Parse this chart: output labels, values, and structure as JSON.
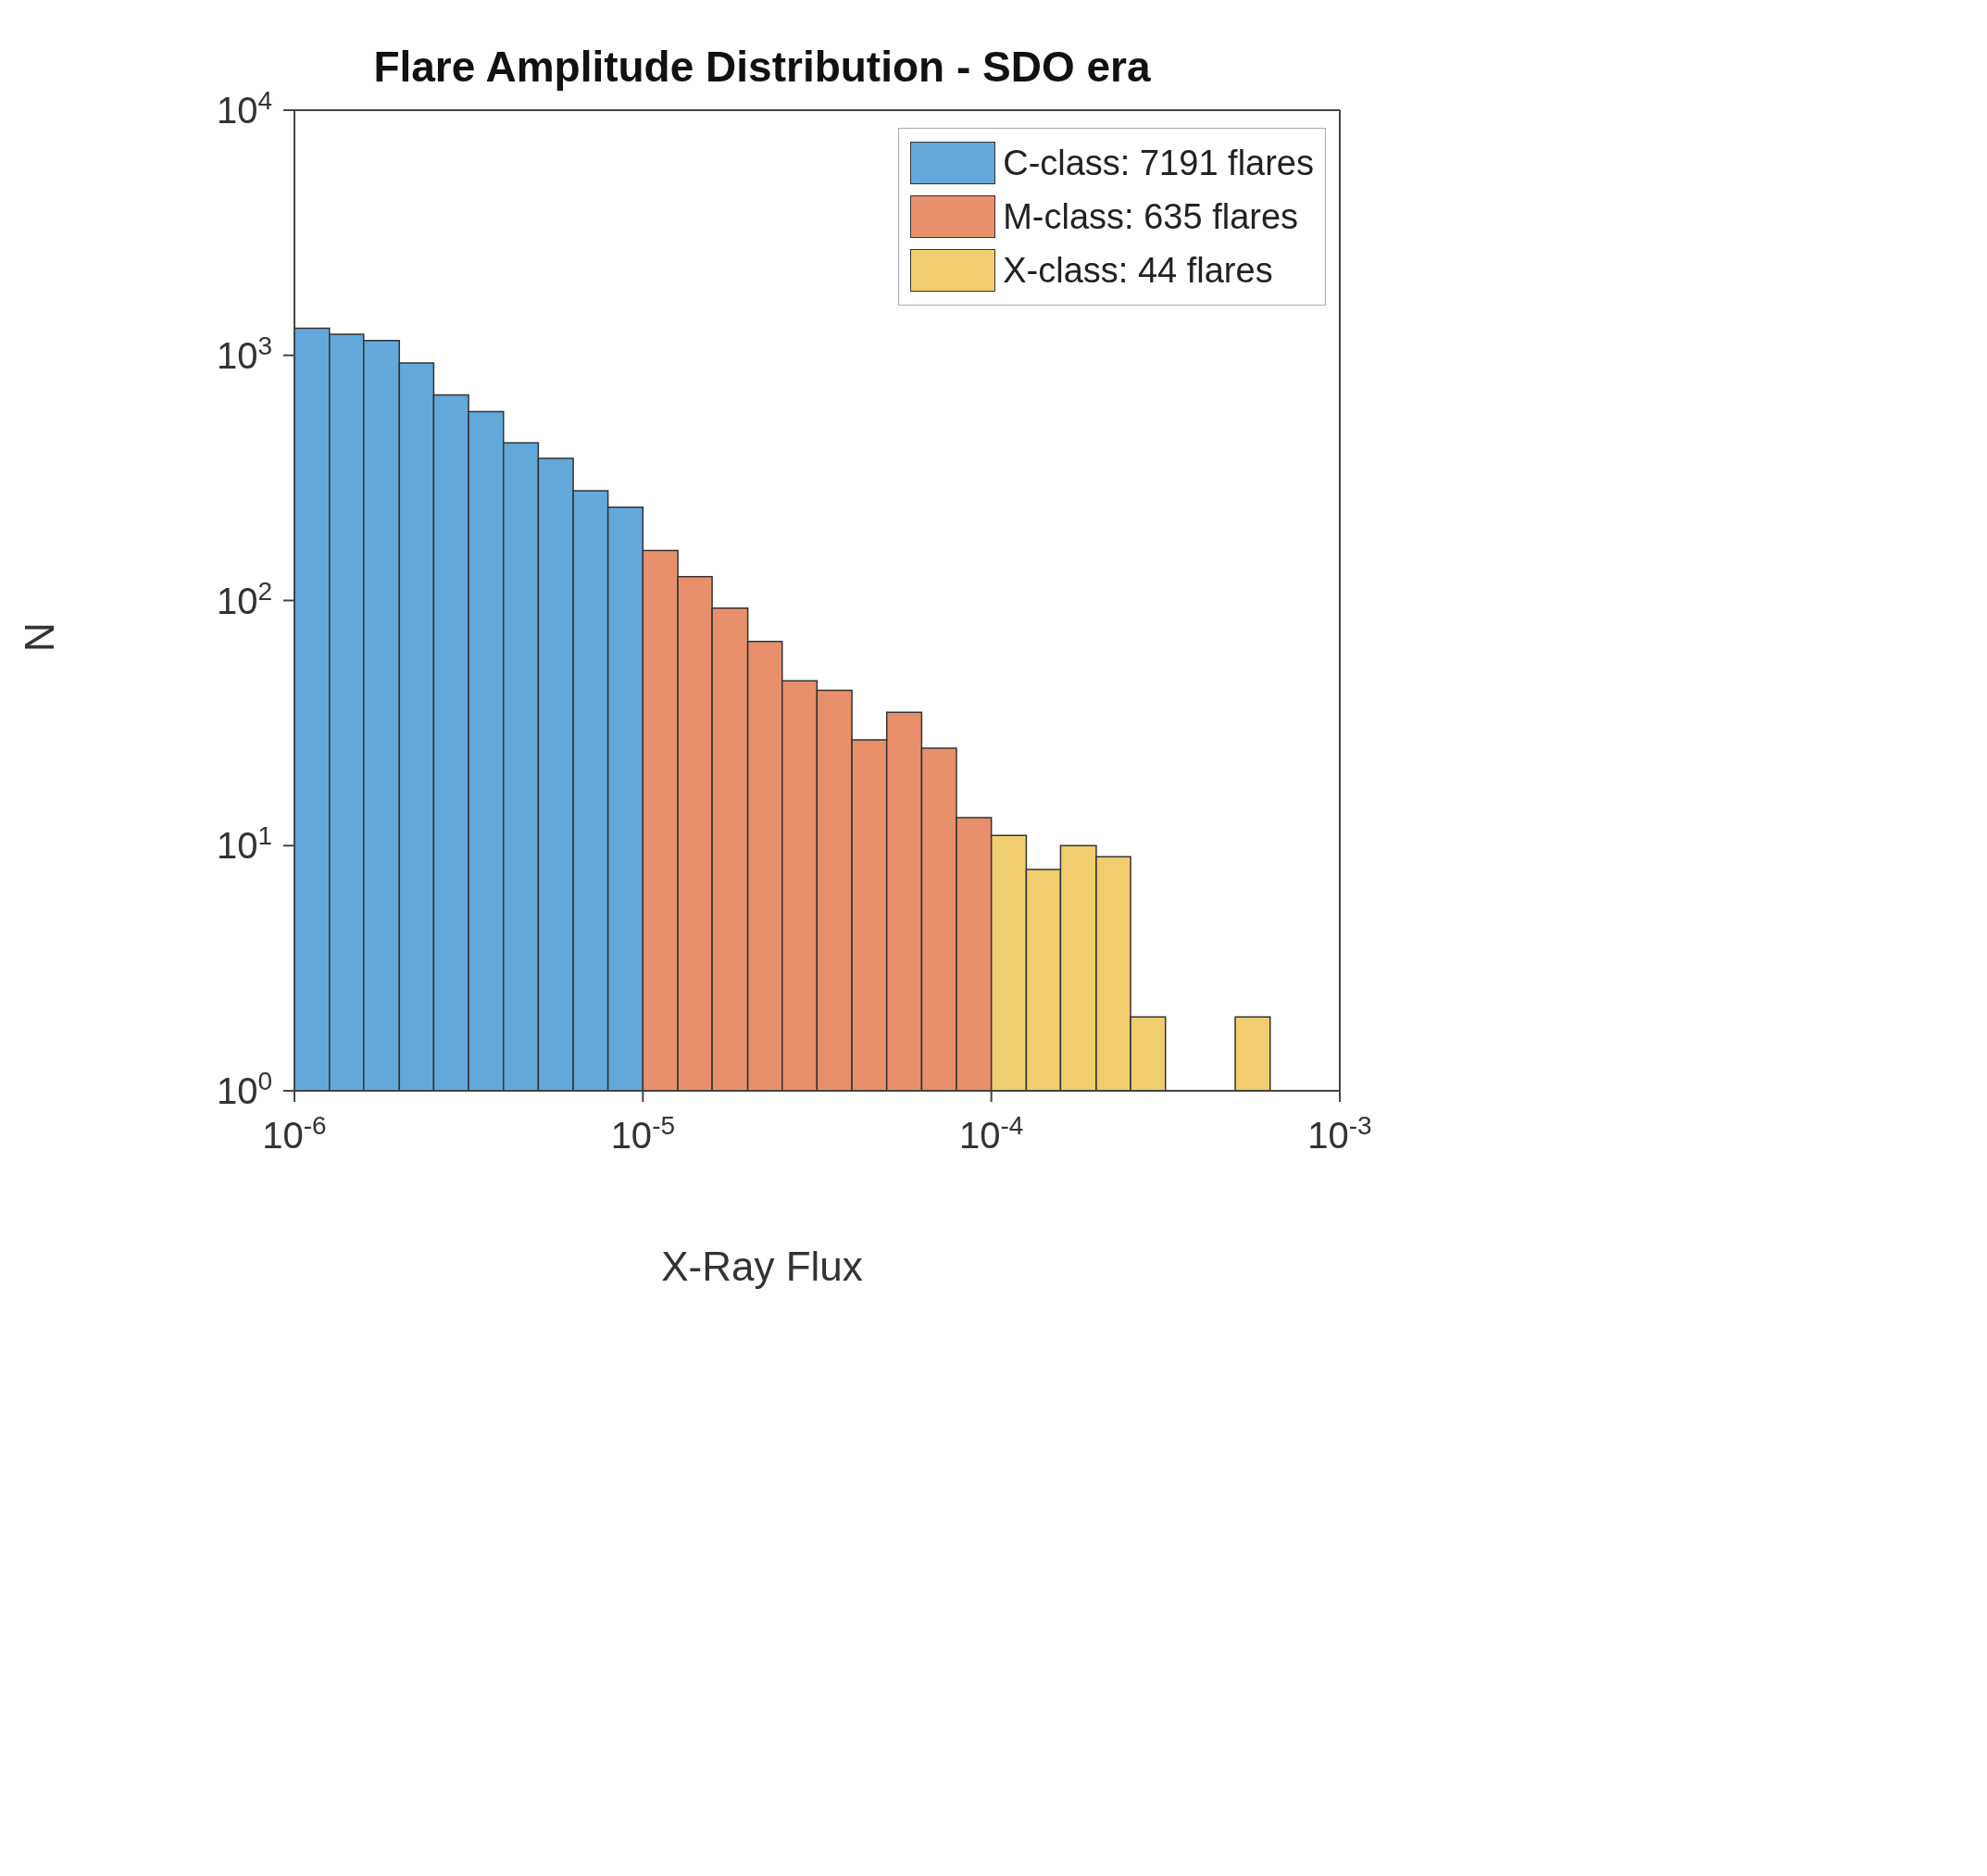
{
  "chart_data": {
    "type": "histogram",
    "title": "Flare Amplitude Distribution - SDO era",
    "xlabel": "X-Ray Flux",
    "ylabel": "N",
    "bins": [
      1e-06,
      1.26e-06,
      1.58e-06,
      2e-06,
      2.51e-06,
      3.16e-06,
      3.98e-06,
      5.01e-06,
      6.31e-06,
      7.94e-06,
      1e-05,
      1.26e-05,
      1.58e-05,
      2e-05,
      2.51e-05,
      3.16e-05,
      3.98e-05,
      5.01e-05,
      6.31e-05,
      7.94e-05,
      0.0001,
      0.000126,
      0.000158,
      0.0002,
      0.000251,
      0.000316,
      0.000501,
      0.000631
    ],
    "series": [
      {
        "name": "C-class: 7191 flares",
        "color": "#62a8db",
        "values": [
          1290,
          1220,
          1150,
          930,
          690,
          590,
          440,
          380,
          280,
          240,
          null,
          null,
          null,
          null,
          null,
          null,
          null,
          null,
          null,
          null,
          null,
          null,
          null,
          null,
          null,
          null,
          null
        ]
      },
      {
        "name": "M-class: 635 flares",
        "color": "#e8906b",
        "values": [
          null,
          null,
          null,
          null,
          null,
          null,
          null,
          null,
          null,
          null,
          160,
          125,
          93,
          68,
          47,
          43,
          27,
          35,
          25,
          13,
          null,
          null,
          null,
          null,
          null,
          null,
          null
        ]
      },
      {
        "name": "X-class: 44 flares",
        "color": "#f0cd6e",
        "values": [
          null,
          null,
          null,
          null,
          null,
          null,
          null,
          null,
          null,
          null,
          null,
          null,
          null,
          null,
          null,
          null,
          null,
          null,
          null,
          null,
          11,
          8,
          10,
          9,
          2,
          null,
          2
        ]
      }
    ],
    "xlim": [
      1e-06,
      0.001
    ],
    "xticks": [
      {
        "value": 1e-06,
        "label": "10$^{-6}$"
      },
      {
        "value": 1e-05,
        "label": "10$^{-5}$"
      },
      {
        "value": 0.0001,
        "label": "10$^{-4}$"
      },
      {
        "value": 0.001,
        "label": "10$^{-3}$"
      }
    ],
    "ylim": [
      1,
      10000
    ],
    "yticks": [
      {
        "value": 1,
        "label": "10$^{0}$"
      },
      {
        "value": 10,
        "label": "10$^{1}$"
      },
      {
        "value": 100,
        "label": "10$^{2}$"
      },
      {
        "value": 1000,
        "label": "10$^{3}$"
      },
      {
        "value": 10000,
        "label": "10$^{4}$"
      }
    ],
    "log": "xy",
    "legend": "top right"
  }
}
